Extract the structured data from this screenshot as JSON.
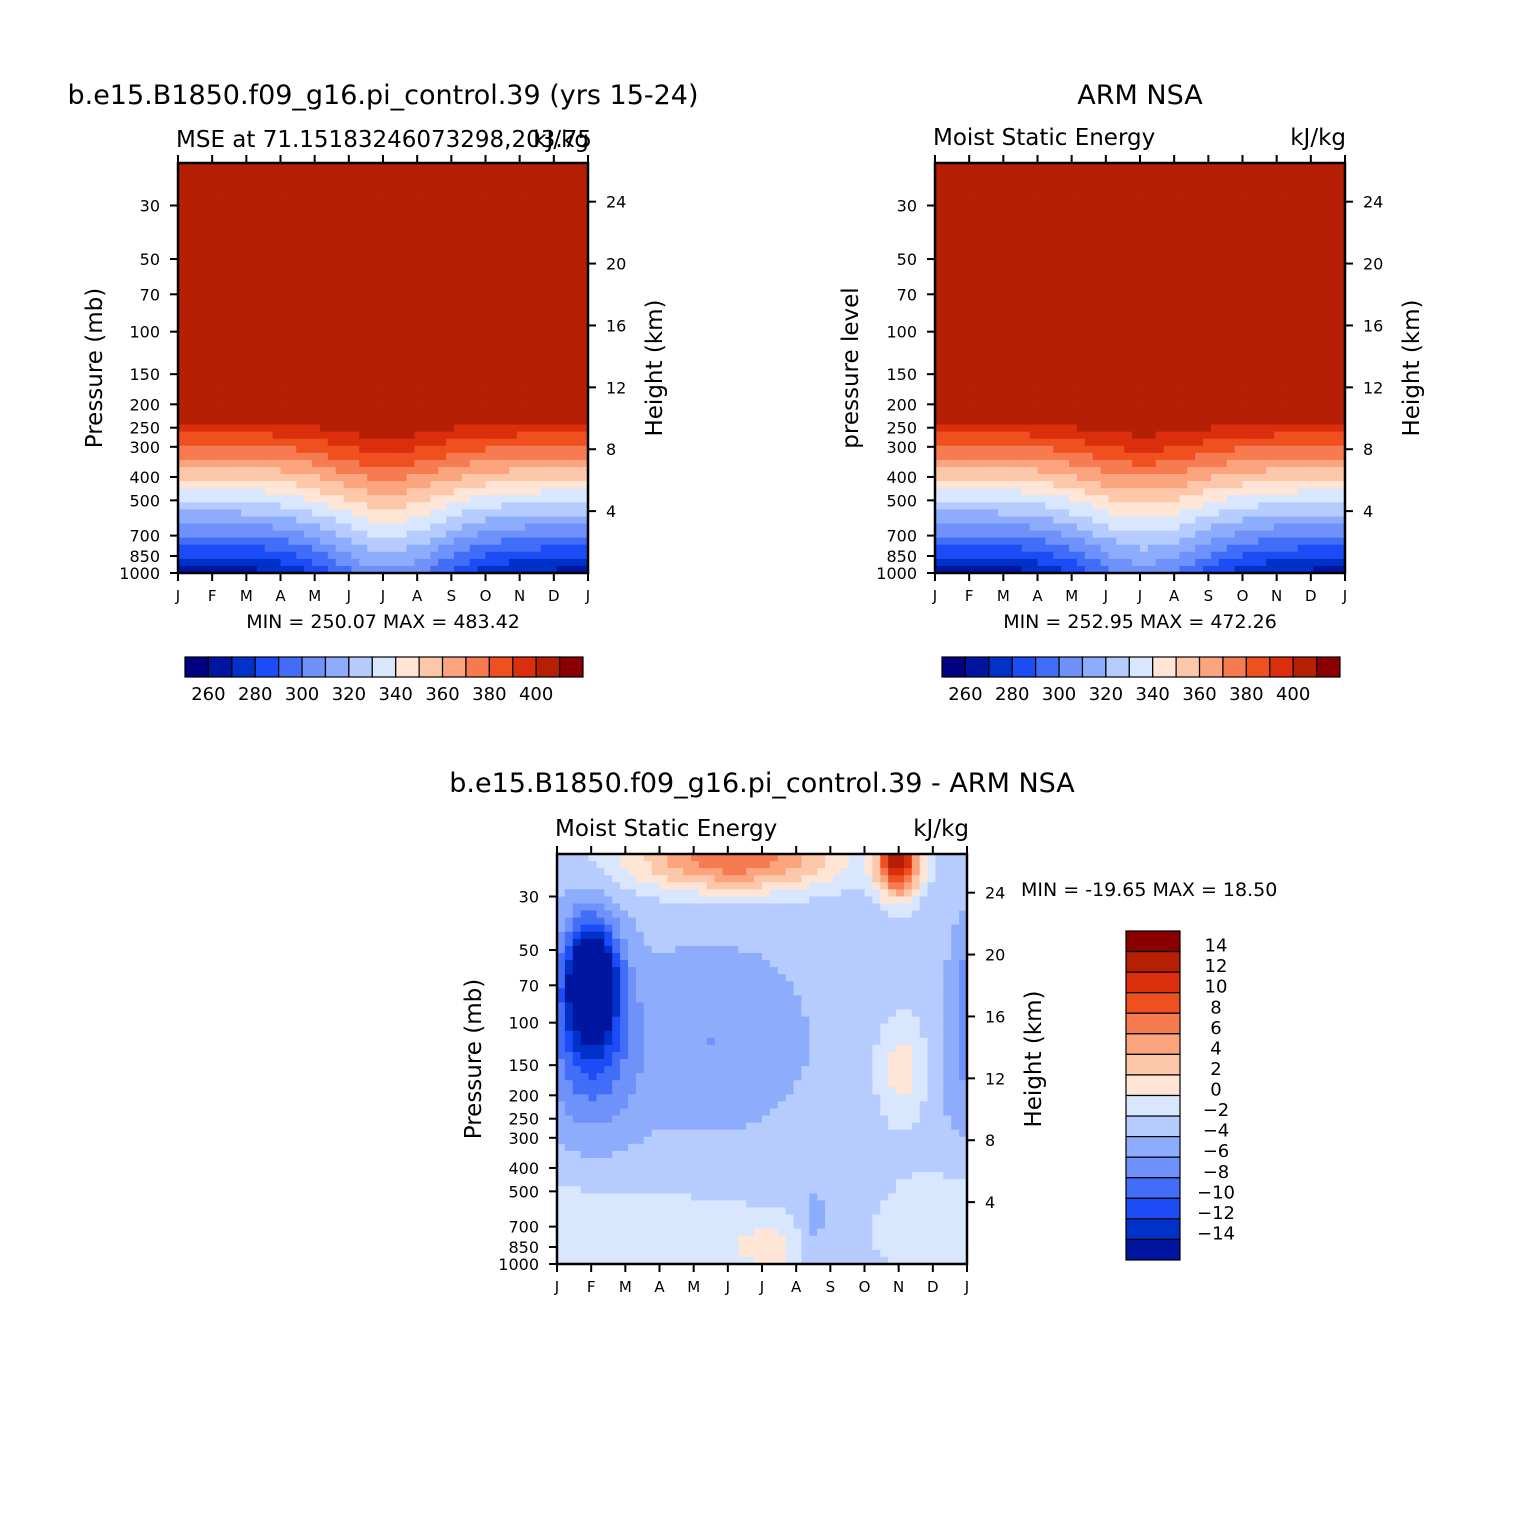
{
  "palette": [
    "#000080",
    "#0016A0",
    "#0031C8",
    "#1C4CF5",
    "#416DF8",
    "#6E91FA",
    "#8EACFC",
    "#B6CCFE",
    "#D8E7FE",
    "#FFE5D5",
    "#FDC8AA",
    "#FBA47D",
    "#F67B50",
    "#F0501F",
    "#DB2E0D",
    "#B51F04",
    "#8A0000"
  ],
  "chart_data": [
    {
      "id": "model",
      "type": "heatmap",
      "title": "b.e15.B1850.f09_g16.pi_control.39 (yrs 15-24)",
      "subtitle_left": "MSE at 71.15183246073298,203.75",
      "subtitle_right": "kJ/kg",
      "ylabel": "Pressure (mb)",
      "y2label": "Height (km)",
      "x_ticks": [
        "J",
        "F",
        "M",
        "A",
        "M",
        "J",
        "J",
        "A",
        "S",
        "O",
        "N",
        "D",
        "J"
      ],
      "y_ticks": [
        30,
        50,
        70,
        100,
        150,
        200,
        250,
        300,
        400,
        500,
        700,
        850,
        1000
      ],
      "y2_ticks": [
        24,
        20,
        16,
        12,
        8,
        4
      ],
      "stats": "MIN = 250.07 MAX = 483.42",
      "min": 250.07,
      "max": 483.42,
      "levels": [
        260,
        270,
        280,
        290,
        300,
        310,
        320,
        330,
        340,
        350,
        360,
        370,
        380,
        390,
        400
      ],
      "colorbar_labels": [
        "260",
        "280",
        "300",
        "320",
        "340",
        "360",
        "380",
        "400"
      ]
    },
    {
      "id": "obs",
      "type": "heatmap",
      "title": "ARM NSA",
      "subtitle_left": "Moist Static Energy",
      "subtitle_right": "kJ/kg",
      "ylabel": "pressure level",
      "y2label": "Height (km)",
      "x_ticks": [
        "J",
        "F",
        "M",
        "A",
        "M",
        "J",
        "J",
        "A",
        "S",
        "O",
        "N",
        "D",
        "J"
      ],
      "y_ticks": [
        30,
        50,
        70,
        100,
        150,
        200,
        250,
        300,
        400,
        500,
        700,
        850,
        1000
      ],
      "y2_ticks": [
        24,
        20,
        16,
        12,
        8,
        4
      ],
      "stats": "MIN = 252.95 MAX = 472.26",
      "min": 252.95,
      "max": 472.26,
      "levels": [
        260,
        270,
        280,
        290,
        300,
        310,
        320,
        330,
        340,
        350,
        360,
        370,
        380,
        390,
        400
      ],
      "colorbar_labels": [
        "260",
        "280",
        "300",
        "320",
        "340",
        "360",
        "380",
        "400"
      ]
    },
    {
      "id": "diff",
      "type": "heatmap",
      "title": "b.e15.B1850.f09_g16.pi_control.39 - ARM NSA",
      "subtitle_left": "Moist Static Energy",
      "subtitle_right": "kJ/kg",
      "ylabel": "Pressure (mb)",
      "y2label": "Height (km)",
      "x_ticks": [
        "J",
        "F",
        "M",
        "A",
        "M",
        "J",
        "J",
        "A",
        "S",
        "O",
        "N",
        "D",
        "J"
      ],
      "y_ticks": [
        30,
        50,
        70,
        100,
        150,
        200,
        250,
        300,
        400,
        500,
        700,
        850,
        1000
      ],
      "y2_ticks": [
        24,
        20,
        16,
        12,
        8,
        4
      ],
      "stats": "MIN = -19.65 MAX =  18.50",
      "min": -19.65,
      "max": 18.5,
      "levels": [
        -14,
        -12,
        -10,
        -8,
        -6,
        -4,
        -2,
        0,
        2,
        4,
        6,
        8,
        10,
        12,
        14
      ],
      "colorbar_labels": [
        "14",
        "12",
        "10",
        "8",
        "6",
        "4",
        "2",
        "0",
        "-2",
        "-4",
        "-6",
        "-8",
        "-10",
        "-12",
        "-14"
      ]
    }
  ]
}
